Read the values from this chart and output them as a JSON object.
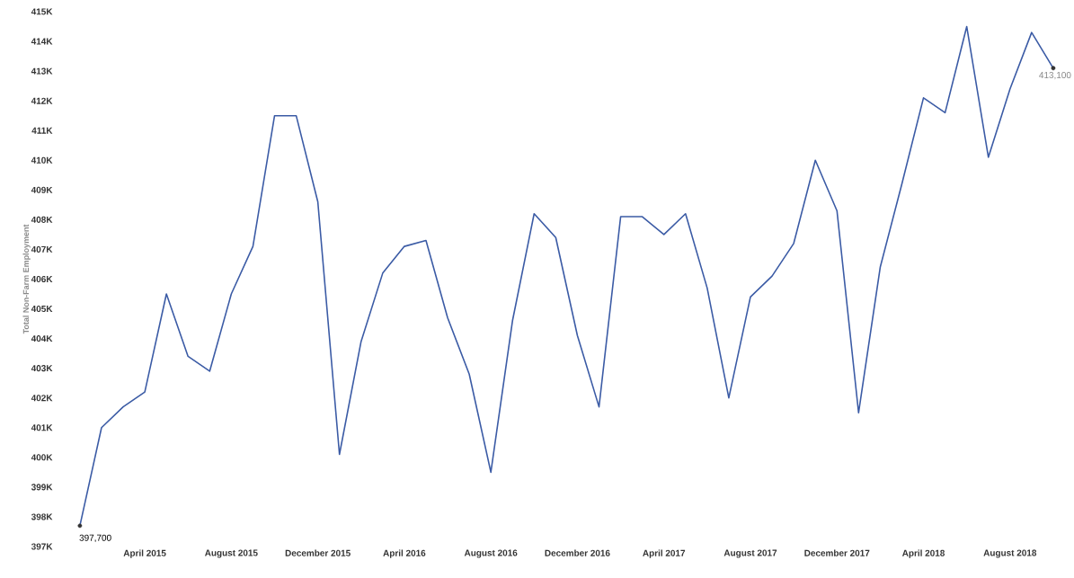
{
  "chart_data": {
    "type": "line",
    "ylabel": "Total Non-Farm Employment",
    "categories": [
      null,
      null,
      null,
      "April 2015",
      null,
      null,
      null,
      "August 2015",
      null,
      null,
      null,
      "December 2015",
      null,
      null,
      null,
      "April 2016",
      null,
      null,
      null,
      "August 2016",
      null,
      null,
      null,
      "December 2016",
      null,
      null,
      null,
      "April 2017",
      null,
      null,
      null,
      "August 2017",
      null,
      null,
      null,
      "December 2017",
      null,
      null,
      null,
      "April 2018",
      null,
      null,
      null,
      "August 2018",
      null,
      null
    ],
    "values": [
      397700,
      401000,
      401700,
      402200,
      405500,
      403400,
      402900,
      405500,
      407100,
      411500,
      411500,
      408600,
      400100,
      403900,
      406200,
      407100,
      407300,
      404700,
      402800,
      399500,
      404600,
      408200,
      407400,
      404100,
      401700,
      408100,
      408100,
      407500,
      408200,
      405700,
      402000,
      405400,
      406100,
      407200,
      410000,
      408300,
      401500,
      406400,
      409200,
      412100,
      411600,
      414500,
      410100,
      412400,
      414300,
      413100
    ],
    "value_labels": [
      "397,700",
      null,
      null,
      null,
      null,
      null,
      null,
      null,
      null,
      null,
      null,
      null,
      null,
      null,
      null,
      null,
      null,
      null,
      null,
      null,
      null,
      null,
      null,
      null,
      null,
      null,
      null,
      null,
      null,
      null,
      null,
      null,
      null,
      null,
      null,
      null,
      null,
      null,
      null,
      null,
      null,
      null,
      null,
      null,
      null,
      "413,100"
    ],
    "color": "#3b5ba5",
    "ylim": [
      397000,
      415000
    ],
    "yticks": [
      {
        "value": 397000,
        "label": "397K"
      },
      {
        "value": 398000,
        "label": "398K"
      },
      {
        "value": 399000,
        "label": "399K"
      },
      {
        "value": 400000,
        "label": "400K"
      },
      {
        "value": 401000,
        "label": "401K"
      },
      {
        "value": 402000,
        "label": "402K"
      },
      {
        "value": 403000,
        "label": "403K"
      },
      {
        "value": 404000,
        "label": "404K"
      },
      {
        "value": 405000,
        "label": "405K"
      },
      {
        "value": 406000,
        "label": "406K"
      },
      {
        "value": 407000,
        "label": "407K"
      },
      {
        "value": 408000,
        "label": "408K"
      },
      {
        "value": 409000,
        "label": "409K"
      },
      {
        "value": 410000,
        "label": "410K"
      },
      {
        "value": 411000,
        "label": "411K"
      },
      {
        "value": 412000,
        "label": "412K"
      },
      {
        "value": 413000,
        "label": "413K"
      },
      {
        "value": 414000,
        "label": "414K"
      },
      {
        "value": 415000,
        "label": "415K"
      }
    ],
    "grid": false,
    "marker": "none",
    "line_style": "solid"
  }
}
